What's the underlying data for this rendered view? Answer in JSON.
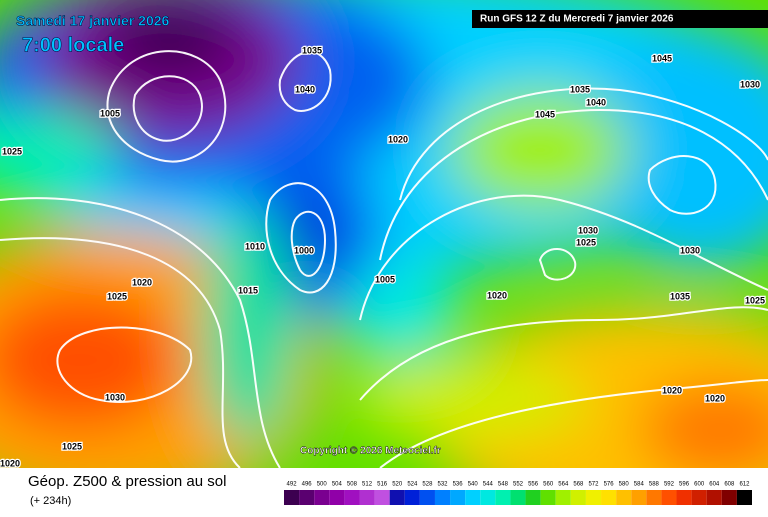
{
  "header": {
    "date": "Samedi 17 janvier 2026",
    "time": "7:00 locale",
    "run": "Run GFS 12 Z du Mercredi 7 janvier 2026",
    "copyright": "Copyright © 2026 Meteociel.fr"
  },
  "footer": {
    "title": "Géop. Z500 & pression au sol",
    "lead": "(+ 234h)"
  },
  "isobar_labels": [
    "1025",
    "1025",
    "1020",
    "1030",
    "1025",
    "1020",
    "1010",
    "1015",
    "1000",
    "1005",
    "1020",
    "1035",
    "1040",
    "1045",
    "1045",
    "1030",
    "1030",
    "1025",
    "1030",
    "1035",
    "1025",
    "1020",
    "1020",
    "1020",
    "1005",
    "1040",
    "1035"
  ],
  "colorbar": {
    "levels": [
      492,
      496,
      500,
      504,
      508,
      512,
      516,
      520,
      524,
      528,
      532,
      536,
      540,
      544,
      548,
      552,
      556,
      560,
      564,
      568,
      572,
      576,
      580,
      584,
      588,
      592,
      596,
      600,
      604,
      608,
      612
    ],
    "colors": [
      "#3c0050",
      "#5a0070",
      "#7a0090",
      "#9000a8",
      "#a010c0",
      "#b030d0",
      "#c050e0",
      "#1010b0",
      "#0020d8",
      "#0050f0",
      "#0080ff",
      "#00a8ff",
      "#00d0ff",
      "#00e8e0",
      "#00f0b0",
      "#00e070",
      "#20d020",
      "#60e000",
      "#a0f000",
      "#d0f000",
      "#f0f000",
      "#ffe000",
      "#ffc000",
      "#ffa000",
      "#ff7800",
      "#ff5000",
      "#f03000",
      "#d02000",
      "#b01000",
      "#800000",
      "#000000"
    ]
  }
}
